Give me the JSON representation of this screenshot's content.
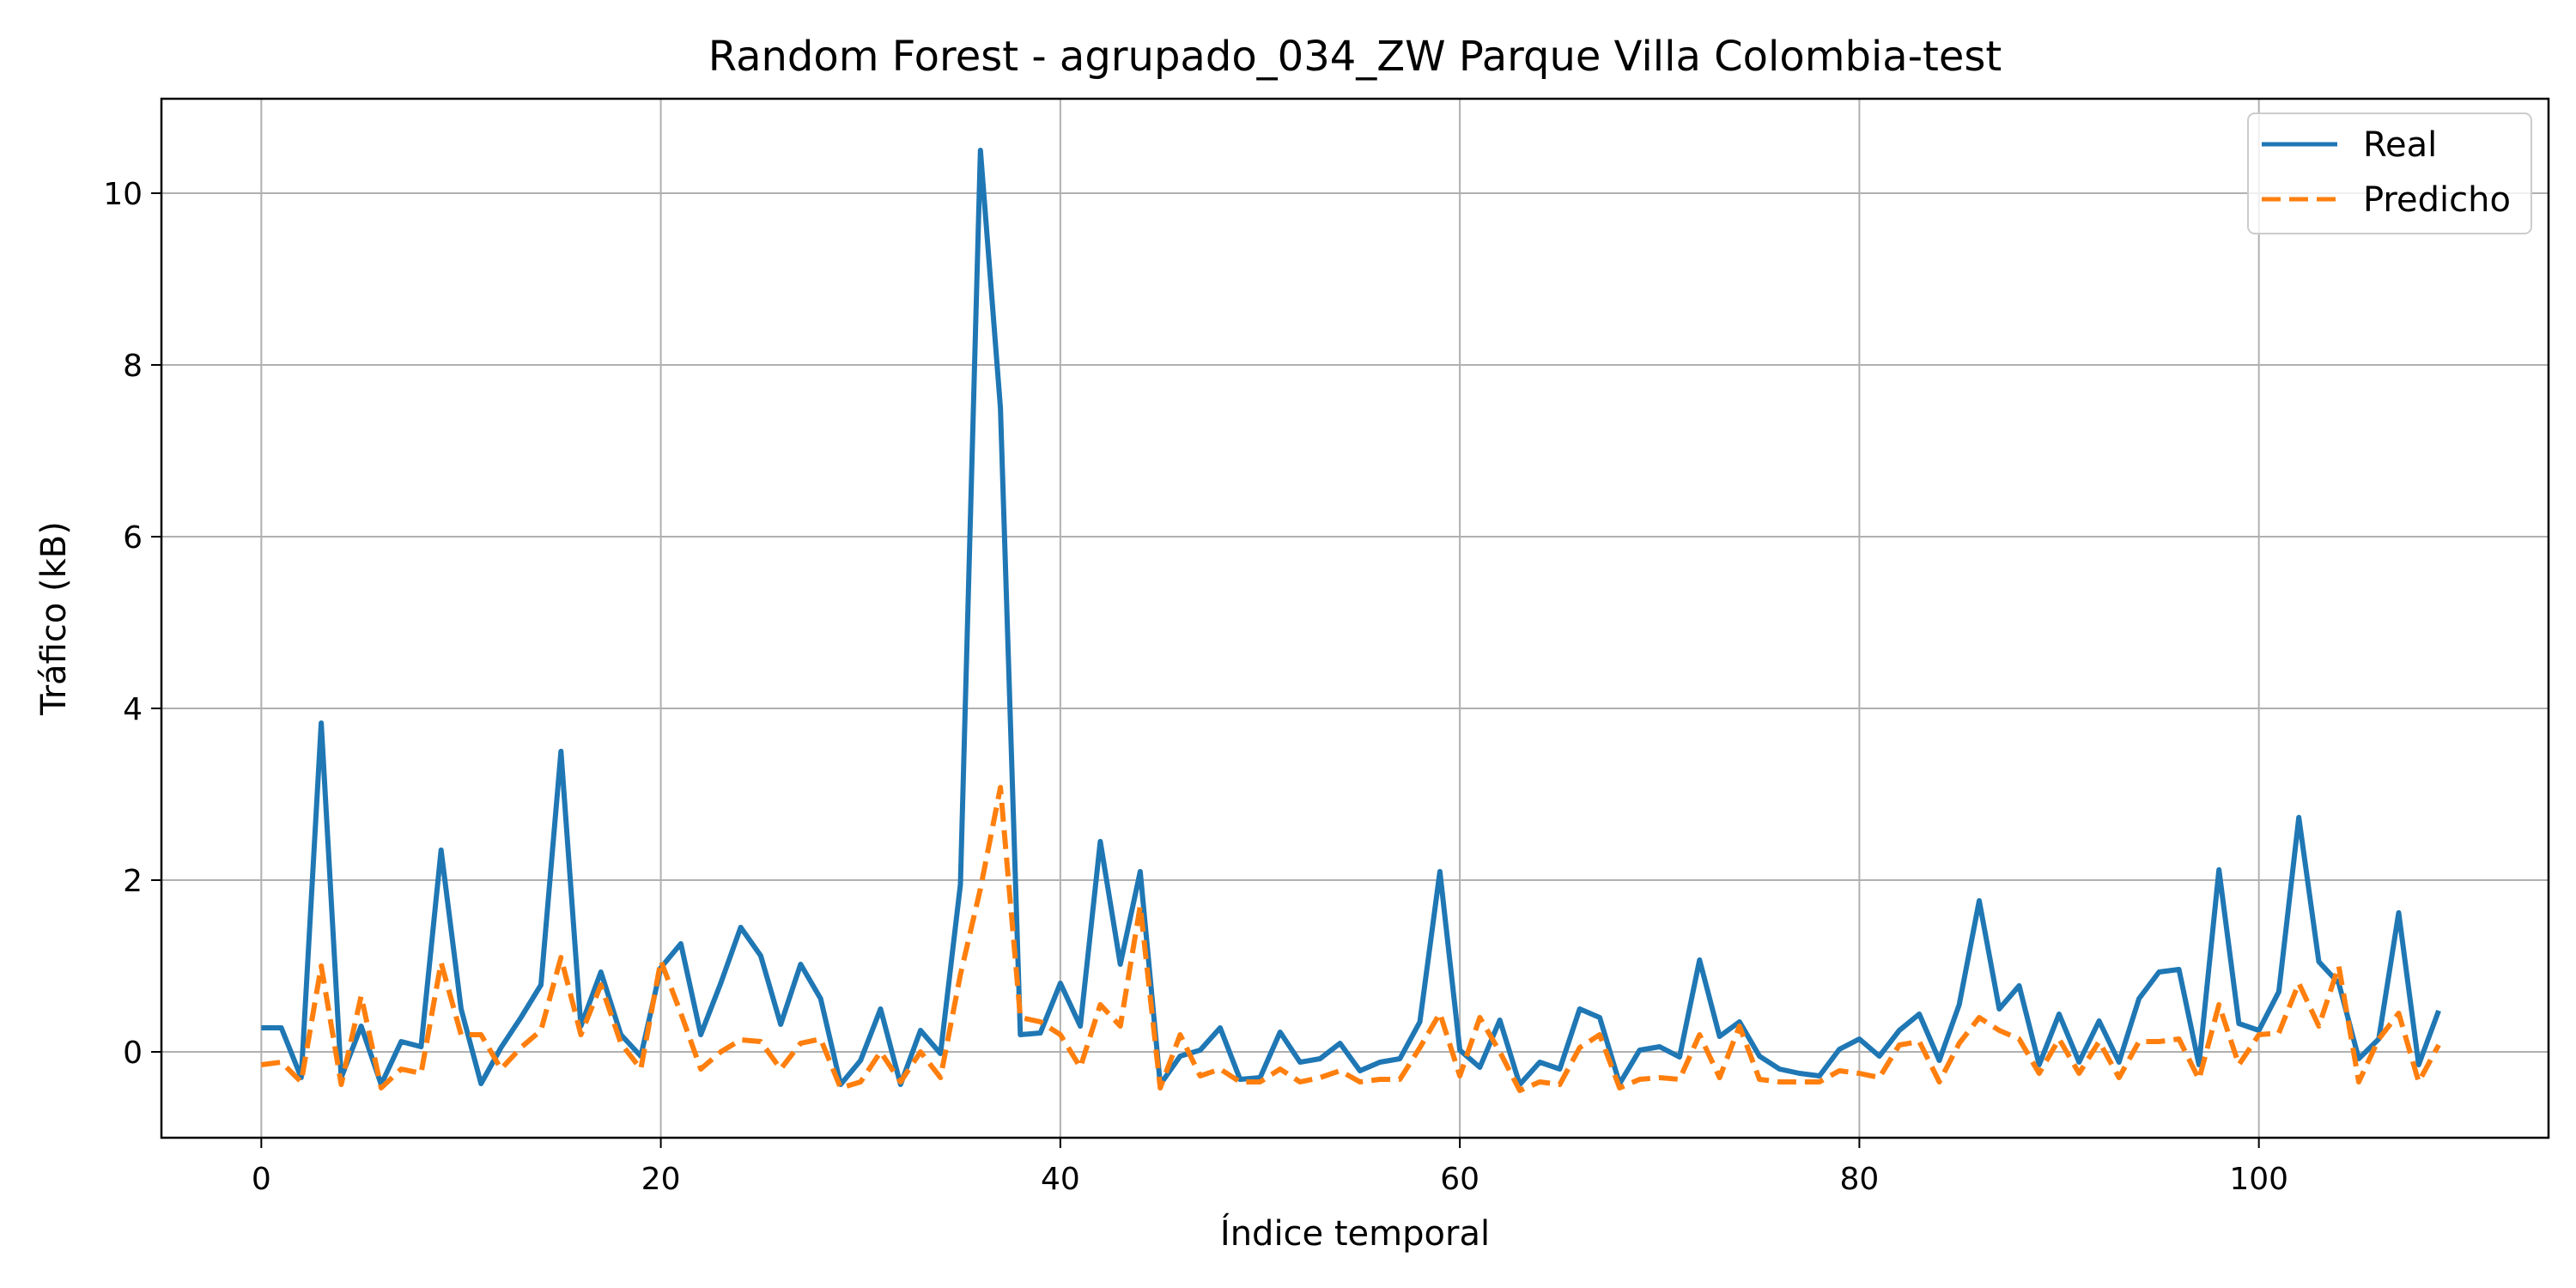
{
  "chart_data": {
    "type": "line",
    "title": "Random Forest - agrupado_034_ZW Parque Villa Colombia-test",
    "xlabel": "Índice temporal",
    "ylabel": "Tráfico (kB)",
    "xlim": [
      -5,
      114.5
    ],
    "ylim": [
      -1,
      11.1
    ],
    "xticks": [
      0,
      20,
      40,
      60,
      80,
      100
    ],
    "yticks": [
      0,
      2,
      4,
      6,
      8,
      10
    ],
    "xtick_labels": [
      "0",
      "20",
      "40",
      "60",
      "80",
      "100"
    ],
    "ytick_labels": [
      "0",
      "2",
      "4",
      "6",
      "8",
      "10"
    ],
    "grid": true,
    "legend_position": "top-right",
    "series": [
      {
        "name": "Real",
        "color": "#1f77b4",
        "dash": "solid",
        "values": [
          0.28,
          0.28,
          -0.3,
          3.83,
          -0.3,
          0.3,
          -0.38,
          0.12,
          0.06,
          2.35,
          0.5,
          -0.37,
          0.05,
          0.4,
          0.78,
          3.5,
          0.3,
          0.93,
          0.2,
          -0.05,
          0.98,
          1.26,
          0.2,
          0.8,
          1.45,
          1.12,
          0.32,
          1.02,
          0.62,
          -0.38,
          -0.1,
          0.5,
          -0.38,
          0.25,
          -0.02,
          1.95,
          10.5,
          7.5,
          0.2,
          0.22,
          0.8,
          0.3,
          2.45,
          1.02,
          2.1,
          -0.38,
          -0.05,
          0.02,
          0.28,
          -0.32,
          -0.3,
          0.23,
          -0.12,
          -0.08,
          0.1,
          -0.22,
          -0.12,
          -0.08,
          0.35,
          2.1,
          0.02,
          -0.18,
          0.37,
          -0.38,
          -0.12,
          -0.2,
          0.5,
          0.4,
          -0.37,
          0.02,
          0.06,
          -0.06,
          1.07,
          0.18,
          0.35,
          -0.05,
          -0.2,
          -0.25,
          -0.28,
          0.03,
          0.15,
          -0.05,
          0.25,
          0.44,
          -0.1,
          0.55,
          1.76,
          0.5,
          0.77,
          -0.15,
          0.44,
          -0.12,
          0.36,
          -0.12,
          0.62,
          0.93,
          0.96,
          -0.15,
          2.12,
          0.33,
          0.25,
          0.7,
          2.73,
          1.05,
          0.8,
          -0.08,
          0.15,
          1.62,
          -0.15,
          0.48
        ]
      },
      {
        "name": "Predicho",
        "color": "#ff7f0e",
        "dash": "dashed",
        "values": [
          -0.15,
          -0.12,
          -0.35,
          1.0,
          -0.38,
          0.65,
          -0.42,
          -0.2,
          -0.25,
          1.04,
          0.2,
          0.2,
          -0.2,
          0.05,
          0.25,
          1.1,
          0.2,
          0.78,
          0.1,
          -0.2,
          1.06,
          0.45,
          -0.2,
          0.0,
          0.14,
          0.12,
          -0.2,
          0.1,
          0.15,
          -0.42,
          -0.35,
          0.0,
          -0.35,
          0.0,
          -0.3,
          0.9,
          1.9,
          3.08,
          0.4,
          0.35,
          0.2,
          -0.18,
          0.55,
          0.3,
          1.7,
          -0.42,
          0.2,
          -0.28,
          -0.2,
          -0.35,
          -0.35,
          -0.2,
          -0.35,
          -0.3,
          -0.22,
          -0.35,
          -0.32,
          -0.32,
          0.05,
          0.45,
          -0.28,
          0.4,
          0.0,
          -0.45,
          -0.35,
          -0.38,
          0.05,
          0.2,
          -0.42,
          -0.32,
          -0.3,
          -0.32,
          0.2,
          -0.3,
          0.3,
          -0.32,
          -0.35,
          -0.35,
          -0.35,
          -0.22,
          -0.25,
          -0.3,
          0.08,
          0.12,
          -0.35,
          0.1,
          0.4,
          0.25,
          0.15,
          -0.25,
          0.15,
          -0.25,
          0.12,
          -0.3,
          0.12,
          0.12,
          0.15,
          -0.32,
          0.55,
          -0.15,
          0.2,
          0.22,
          0.8,
          0.3,
          1.0,
          -0.35,
          0.15,
          0.45,
          -0.35,
          0.08
        ]
      }
    ]
  }
}
